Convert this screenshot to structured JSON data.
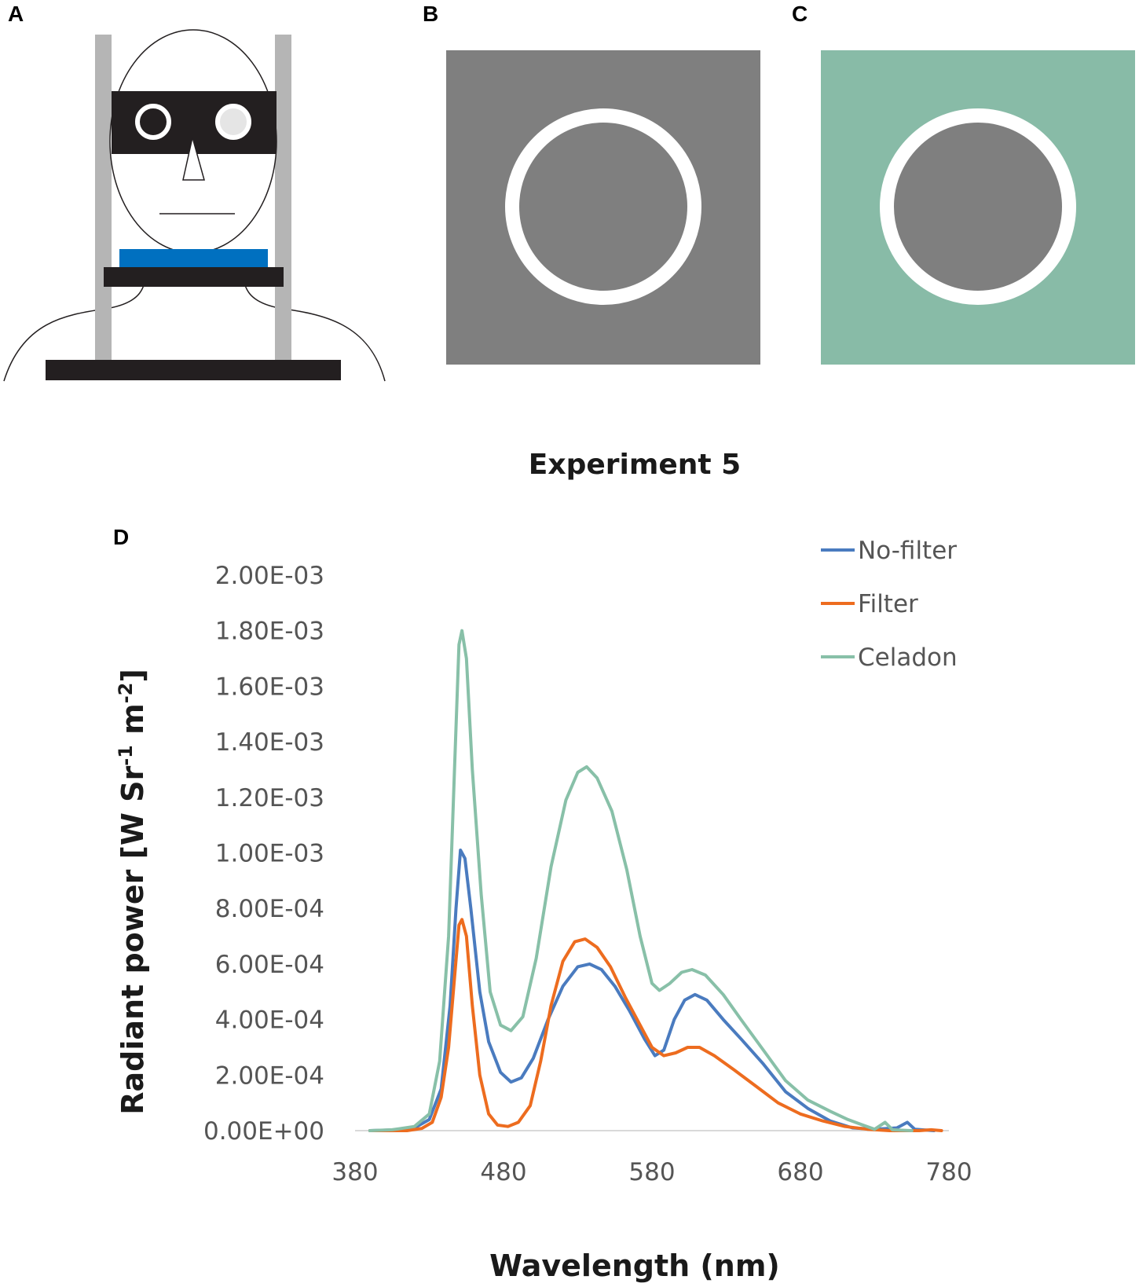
{
  "panels": {
    "a": "A",
    "b": "B",
    "c": "C",
    "d": "D"
  },
  "colors": {
    "stimulus_gray": "#7f7f7f",
    "celadon_background": "#88bba7",
    "ring": "#ffffff",
    "chin_rest": "#0070c0",
    "goggles": "#231f20"
  },
  "chart_data": {
    "type": "line",
    "title": "Experiment 5",
    "xlabel": "Wavelength (nm)",
    "ylabel_main": "Radiant power [W Sr",
    "ylabel_sup1": "-1",
    "ylabel_mid": " m",
    "ylabel_sup2": "-2",
    "ylabel_end": "]",
    "xlim": [
      380,
      780
    ],
    "ylim": [
      0,
      0.002
    ],
    "x_ticks": [
      "380",
      "480",
      "580",
      "680",
      "780"
    ],
    "y_ticks": [
      "0.00E+00",
      "2.00E-04",
      "4.00E-04",
      "6.00E-04",
      "8.00E-04",
      "1.00E-03",
      "1.20E-03",
      "1.40E-03",
      "1.60E-03",
      "1.80E-03",
      "2.00E-03"
    ],
    "legend_position": "top-right",
    "grid": false,
    "series": [
      {
        "name": "No-filter",
        "color": "#4a7bbf",
        "points": [
          [
            390,
            0
          ],
          [
            410,
            3e-06
          ],
          [
            420,
            1e-05
          ],
          [
            430,
            4e-05
          ],
          [
            438,
            0.00015
          ],
          [
            444,
            0.00045
          ],
          [
            448,
            0.0008
          ],
          [
            451,
            0.00101
          ],
          [
            454,
            0.00098
          ],
          [
            458,
            0.0008
          ],
          [
            464,
            0.0005
          ],
          [
            470,
            0.00032
          ],
          [
            478,
            0.00021
          ],
          [
            485,
            0.000175
          ],
          [
            492,
            0.00019
          ],
          [
            500,
            0.00026
          ],
          [
            510,
            0.0004
          ],
          [
            520,
            0.00052
          ],
          [
            530,
            0.00059
          ],
          [
            538,
            0.0006
          ],
          [
            546,
            0.00058
          ],
          [
            555,
            0.00052
          ],
          [
            565,
            0.00043
          ],
          [
            575,
            0.00033
          ],
          [
            582,
            0.00027
          ],
          [
            588,
            0.00029
          ],
          [
            595,
            0.0004
          ],
          [
            602,
            0.00047
          ],
          [
            609,
            0.00049
          ],
          [
            617,
            0.00047
          ],
          [
            628,
            0.0004
          ],
          [
            640,
            0.00033
          ],
          [
            655,
            0.00024
          ],
          [
            670,
            0.00014
          ],
          [
            685,
            8e-05
          ],
          [
            700,
            3.5e-05
          ],
          [
            715,
            1e-05
          ],
          [
            730,
            5e-06
          ],
          [
            745,
            1e-05
          ],
          [
            752,
            3e-05
          ],
          [
            757,
            5e-06
          ],
          [
            770,
            0
          ]
        ]
      },
      {
        "name": "Filter",
        "color": "#ed6c1f",
        "points": [
          [
            390,
            0
          ],
          [
            415,
            0
          ],
          [
            425,
            8e-06
          ],
          [
            432,
            3e-05
          ],
          [
            438,
            0.00012
          ],
          [
            443,
            0.0003
          ],
          [
            447,
            0.00055
          ],
          [
            450,
            0.00074
          ],
          [
            452,
            0.00076
          ],
          [
            455,
            0.0007
          ],
          [
            459,
            0.00045
          ],
          [
            464,
            0.0002
          ],
          [
            470,
            6e-05
          ],
          [
            476,
            2e-05
          ],
          [
            483,
            1.5e-05
          ],
          [
            490,
            3e-05
          ],
          [
            498,
            9e-05
          ],
          [
            505,
            0.00025
          ],
          [
            512,
            0.00045
          ],
          [
            520,
            0.00061
          ],
          [
            528,
            0.00068
          ],
          [
            535,
            0.00069
          ],
          [
            543,
            0.00066
          ],
          [
            552,
            0.00059
          ],
          [
            562,
            0.00048
          ],
          [
            572,
            0.00038
          ],
          [
            580,
            0.0003
          ],
          [
            588,
            0.00027
          ],
          [
            596,
            0.00028
          ],
          [
            604,
            0.0003
          ],
          [
            612,
            0.0003
          ],
          [
            622,
            0.00027
          ],
          [
            635,
            0.00022
          ],
          [
            650,
            0.00016
          ],
          [
            665,
            0.0001
          ],
          [
            680,
            6e-05
          ],
          [
            695,
            3.5e-05
          ],
          [
            710,
            1.5e-05
          ],
          [
            725,
            5e-06
          ],
          [
            740,
            0
          ],
          [
            760,
            0
          ],
          [
            768,
            3e-06
          ],
          [
            775,
            0
          ]
        ]
      },
      {
        "name": "Celadon",
        "color": "#88c0a8",
        "points": [
          [
            390,
            0
          ],
          [
            405,
            3e-06
          ],
          [
            420,
            1.5e-05
          ],
          [
            430,
            6e-05
          ],
          [
            437,
            0.00025
          ],
          [
            443,
            0.0007
          ],
          [
            447,
            0.0013
          ],
          [
            450,
            0.00175
          ],
          [
            452,
            0.0018
          ],
          [
            455,
            0.0017
          ],
          [
            459,
            0.0013
          ],
          [
            465,
            0.00085
          ],
          [
            471,
            0.0005
          ],
          [
            478,
            0.00038
          ],
          [
            485,
            0.00036
          ],
          [
            493,
            0.00041
          ],
          [
            502,
            0.00062
          ],
          [
            512,
            0.00095
          ],
          [
            522,
            0.00119
          ],
          [
            530,
            0.00129
          ],
          [
            536,
            0.00131
          ],
          [
            543,
            0.00127
          ],
          [
            553,
            0.00115
          ],
          [
            563,
            0.00094
          ],
          [
            572,
            0.0007
          ],
          [
            580,
            0.00053
          ],
          [
            585,
            0.000505
          ],
          [
            592,
            0.00053
          ],
          [
            600,
            0.00057
          ],
          [
            607,
            0.00058
          ],
          [
            616,
            0.00056
          ],
          [
            628,
            0.00049
          ],
          [
            640,
            0.0004
          ],
          [
            655,
            0.00029
          ],
          [
            670,
            0.00018
          ],
          [
            685,
            0.00011
          ],
          [
            700,
            7e-05
          ],
          [
            712,
            4e-05
          ],
          [
            722,
            2e-05
          ],
          [
            730,
            5e-06
          ],
          [
            737,
            3e-05
          ],
          [
            742,
            3e-06
          ],
          [
            755,
            0
          ]
        ]
      }
    ]
  }
}
